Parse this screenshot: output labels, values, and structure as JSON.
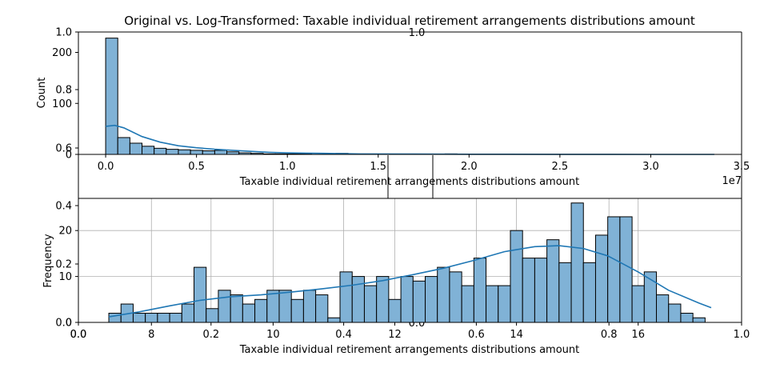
{
  "title": "Original vs. Log-Transformed: Taxable individual retirement arrangements distributions amount",
  "chart_data": [
    {
      "type": "bar",
      "subtype": "histogram",
      "kde": true,
      "xlabel": "Taxable individual retirement arrangements distributions amount",
      "ylabel": "Count",
      "x_scale_label": "1e7",
      "xlim": [
        -0.15,
        3.5
      ],
      "ylim": [
        0,
        240
      ],
      "x_ticks": [
        "0.0",
        "0.5",
        "1.0",
        "1.5",
        "2.0",
        "2.5",
        "3.0",
        "3.5"
      ],
      "y_ticks": [
        "0",
        "100",
        "200"
      ],
      "overlay_y_ticks": [
        "0.6",
        "0.8",
        "1.0"
      ],
      "bin_width": 0.0667,
      "counts": [
        228,
        33,
        22,
        16,
        12,
        10,
        9,
        8,
        7,
        8,
        5,
        3,
        2,
        1,
        1,
        1,
        1,
        0,
        0,
        2,
        0,
        0,
        0,
        0,
        0,
        0,
        0,
        0,
        1,
        0,
        0,
        0,
        0,
        0,
        0,
        0,
        0,
        0,
        0,
        0,
        0,
        0,
        0,
        0,
        0,
        0,
        0,
        0,
        0,
        0
      ],
      "kde_points": [
        [
          0.0,
          55
        ],
        [
          0.05,
          57
        ],
        [
          0.1,
          52
        ],
        [
          0.2,
          35
        ],
        [
          0.3,
          24
        ],
        [
          0.4,
          17
        ],
        [
          0.5,
          13
        ],
        [
          0.6,
          10
        ],
        [
          0.7,
          8
        ],
        [
          0.8,
          6
        ],
        [
          0.9,
          4
        ],
        [
          1.0,
          3
        ],
        [
          1.2,
          2
        ],
        [
          1.4,
          1
        ],
        [
          1.7,
          0.6
        ],
        [
          2.0,
          0.3
        ],
        [
          2.5,
          0.1
        ],
        [
          3.0,
          0.05
        ],
        [
          3.35,
          0
        ]
      ],
      "grid": false
    },
    {
      "type": "bar",
      "subtype": "histogram",
      "kde": true,
      "xlabel": "Taxable individual retirement arrangements distributions amount",
      "ylabel": "Frequency",
      "xlim": [
        6.8,
        17.7
      ],
      "ylim": [
        0,
        27
      ],
      "x_ticks": [
        "8",
        "10",
        "12",
        "14",
        "16"
      ],
      "y_ticks": [
        "0",
        "10",
        "20"
      ],
      "bin_start": 7.3,
      "bin_width": 0.2,
      "counts": [
        2,
        4,
        2,
        2,
        2,
        2,
        4,
        12,
        3,
        7,
        6,
        4,
        5,
        7,
        7,
        5,
        7,
        6,
        1,
        11,
        10,
        8,
        10,
        5,
        10,
        9,
        10,
        12,
        11,
        8,
        14,
        8,
        8,
        20,
        14,
        14,
        18,
        13,
        26,
        13,
        19,
        23,
        23,
        8,
        11,
        6,
        4,
        2,
        1
      ],
      "kde_points": [
        [
          7.3,
          1.2
        ],
        [
          7.8,
          2.3
        ],
        [
          8.3,
          3.6
        ],
        [
          8.8,
          4.8
        ],
        [
          9.3,
          5.6
        ],
        [
          9.8,
          6.0
        ],
        [
          10.3,
          6.6
        ],
        [
          10.8,
          7.3
        ],
        [
          11.3,
          8.1
        ],
        [
          11.8,
          9.1
        ],
        [
          12.3,
          10.4
        ],
        [
          12.8,
          11.8
        ],
        [
          13.3,
          13.5
        ],
        [
          13.8,
          15.4
        ],
        [
          14.3,
          16.5
        ],
        [
          14.7,
          16.7
        ],
        [
          15.1,
          16.1
        ],
        [
          15.5,
          14.5
        ],
        [
          16.0,
          11.0
        ],
        [
          16.5,
          7.0
        ],
        [
          17.0,
          4.2
        ],
        [
          17.2,
          3.2
        ]
      ],
      "grid": true,
      "overlay_x_ticks": [
        "0.0",
        "0.2",
        "0.4",
        "0.6",
        "0.8",
        "1.0"
      ],
      "overlay_y_ticks": [
        "0.0",
        "0.2",
        "0.4"
      ]
    }
  ],
  "stray_ticks": {
    "top_center": "1.0",
    "bottom_center": "0.0",
    "bottom_mid_label": "0.0"
  }
}
